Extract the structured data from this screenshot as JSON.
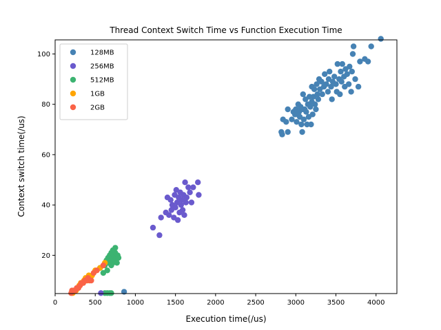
{
  "chart_data": {
    "type": "scatter",
    "title": "Thread Context Switch Time vs Function Execution Time",
    "xlabel": "Execution time(/us)",
    "ylabel": "Context switch time(/us)",
    "xlim": [
      0,
      4260
    ],
    "ylim": [
      4.8,
      105.6
    ],
    "xticks": [
      0,
      500,
      1000,
      1500,
      2000,
      2500,
      3000,
      3500,
      4000
    ],
    "yticks": [
      20,
      40,
      60,
      80,
      100
    ],
    "grid": false,
    "legend_position": "top-left",
    "series": [
      {
        "name": "128MB",
        "color": "#4682b4",
        "points": [
          [
            2820,
            69
          ],
          [
            2830,
            68
          ],
          [
            2840,
            74
          ],
          [
            2880,
            73
          ],
          [
            2900,
            69
          ],
          [
            2900,
            78
          ],
          [
            2950,
            74
          ],
          [
            2970,
            77
          ],
          [
            2990,
            76
          ],
          [
            3000,
            78
          ],
          [
            3010,
            73
          ],
          [
            3020,
            76
          ],
          [
            3030,
            80
          ],
          [
            3040,
            77
          ],
          [
            3050,
            75
          ],
          [
            3060,
            79
          ],
          [
            3070,
            72
          ],
          [
            3080,
            69
          ],
          [
            3080,
            78
          ],
          [
            3090,
            84
          ],
          [
            3100,
            74
          ],
          [
            3110,
            78
          ],
          [
            3120,
            82
          ],
          [
            3130,
            77
          ],
          [
            3140,
            72
          ],
          [
            3150,
            80
          ],
          [
            3160,
            75
          ],
          [
            3170,
            83
          ],
          [
            3180,
            79
          ],
          [
            3190,
            72
          ],
          [
            3200,
            81
          ],
          [
            3200,
            87
          ],
          [
            3210,
            76
          ],
          [
            3220,
            83
          ],
          [
            3230,
            86
          ],
          [
            3240,
            80
          ],
          [
            3250,
            78
          ],
          [
            3260,
            88
          ],
          [
            3270,
            84
          ],
          [
            3280,
            82
          ],
          [
            3290,
            90
          ],
          [
            3300,
            86
          ],
          [
            3320,
            89
          ],
          [
            3330,
            84
          ],
          [
            3350,
            87
          ],
          [
            3360,
            92
          ],
          [
            3380,
            88
          ],
          [
            3400,
            85
          ],
          [
            3410,
            90
          ],
          [
            3420,
            93
          ],
          [
            3440,
            87
          ],
          [
            3450,
            82
          ],
          [
            3460,
            89
          ],
          [
            3480,
            91
          ],
          [
            3500,
            88
          ],
          [
            3510,
            85
          ],
          [
            3520,
            96
          ],
          [
            3540,
            90
          ],
          [
            3550,
            84
          ],
          [
            3560,
            93
          ],
          [
            3570,
            89
          ],
          [
            3580,
            96
          ],
          [
            3600,
            91
          ],
          [
            3610,
            87
          ],
          [
            3620,
            94
          ],
          [
            3640,
            92
          ],
          [
            3660,
            88
          ],
          [
            3670,
            95
          ],
          [
            3690,
            85
          ],
          [
            3700,
            93
          ],
          [
            3710,
            100
          ],
          [
            3720,
            103
          ],
          [
            3740,
            90
          ],
          [
            3780,
            87
          ],
          [
            3800,
            97
          ],
          [
            3860,
            98
          ],
          [
            3900,
            97
          ],
          [
            3940,
            103
          ],
          [
            4060,
            106
          ]
        ]
      },
      {
        "name": "256MB",
        "color": "#6a5acd",
        "points": [
          [
            1220,
            31
          ],
          [
            1300,
            28
          ],
          [
            1320,
            35
          ],
          [
            1380,
            37
          ],
          [
            1400,
            43
          ],
          [
            1420,
            36
          ],
          [
            1440,
            42
          ],
          [
            1450,
            38
          ],
          [
            1460,
            40
          ],
          [
            1480,
            35
          ],
          [
            1490,
            44
          ],
          [
            1500,
            39
          ],
          [
            1510,
            46
          ],
          [
            1520,
            41
          ],
          [
            1530,
            34
          ],
          [
            1540,
            43
          ],
          [
            1550,
            37
          ],
          [
            1560,
            45
          ],
          [
            1570,
            40
          ],
          [
            1580,
            42
          ],
          [
            1590,
            38
          ],
          [
            1600,
            44
          ],
          [
            1610,
            36
          ],
          [
            1620,
            49
          ],
          [
            1630,
            41
          ],
          [
            1640,
            43
          ],
          [
            1660,
            47
          ],
          [
            1680,
            45
          ],
          [
            1700,
            41
          ],
          [
            1720,
            47
          ],
          [
            1780,
            49
          ],
          [
            1790,
            44
          ]
        ]
      },
      {
        "name": "512MB",
        "color": "#3cb371",
        "points": [
          [
            560,
            15
          ],
          [
            600,
            13
          ],
          [
            620,
            16
          ],
          [
            640,
            18
          ],
          [
            650,
            14
          ],
          [
            660,
            19
          ],
          [
            670,
            17
          ],
          [
            680,
            20
          ],
          [
            690,
            18
          ],
          [
            700,
            21
          ],
          [
            700,
            16
          ],
          [
            710,
            19
          ],
          [
            720,
            22
          ],
          [
            720,
            17
          ],
          [
            730,
            20
          ],
          [
            740,
            18
          ],
          [
            750,
            21
          ],
          [
            750,
            23
          ],
          [
            760,
            19
          ],
          [
            770,
            17
          ],
          [
            780,
            20
          ],
          [
            790,
            19
          ],
          [
            620,
            5
          ],
          [
            650,
            5
          ],
          [
            680,
            5
          ],
          [
            700,
            5
          ]
        ]
      },
      {
        "name": "1GB",
        "color": "#ffa500",
        "points": [
          [
            220,
            5
          ],
          [
            240,
            6
          ],
          [
            260,
            6
          ],
          [
            280,
            7
          ],
          [
            300,
            8
          ],
          [
            320,
            9
          ],
          [
            340,
            9
          ],
          [
            360,
            10
          ],
          [
            380,
            11
          ],
          [
            400,
            10
          ],
          [
            420,
            12
          ],
          [
            440,
            11
          ],
          [
            460,
            12
          ],
          [
            500,
            14
          ],
          [
            560,
            15
          ],
          [
            620,
            17
          ]
        ]
      },
      {
        "name": "2GB",
        "color": "#fa6347",
        "points": [
          [
            200,
            5
          ],
          [
            210,
            6
          ],
          [
            230,
            6
          ],
          [
            250,
            6
          ],
          [
            270,
            7
          ],
          [
            290,
            7
          ],
          [
            310,
            8
          ],
          [
            330,
            9
          ],
          [
            350,
            9
          ],
          [
            370,
            10
          ],
          [
            390,
            10
          ],
          [
            410,
            11
          ],
          [
            430,
            10
          ],
          [
            450,
            10
          ],
          [
            480,
            13
          ],
          [
            520,
            14
          ],
          [
            600,
            16
          ]
        ]
      }
    ]
  },
  "stray_points": [
    {
      "x": 860,
      "y": 5.5,
      "color": "#4682b4"
    },
    {
      "x": 570,
      "y": 5,
      "color": "#6a5acd"
    }
  ]
}
